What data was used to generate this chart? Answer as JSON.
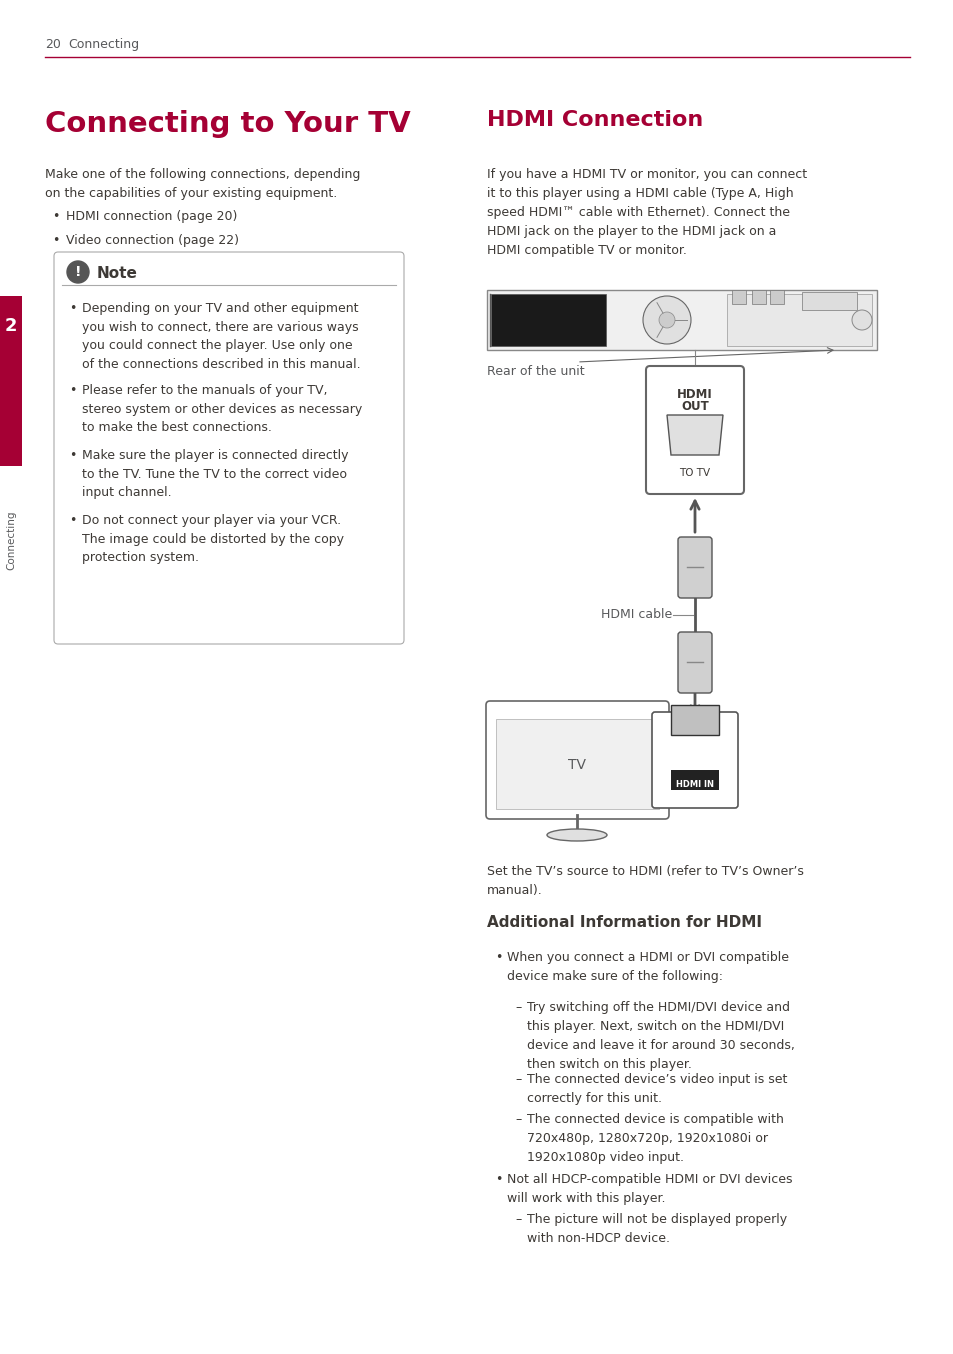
{
  "page_num": "20",
  "page_header_text": "Connecting",
  "header_line_color": "#a50034",
  "left_title": "Connecting to Your TV",
  "right_title": "HDMI Connection",
  "title_color": "#a50034",
  "left_intro": "Make one of the following connections, depending\non the capabilities of your existing equipment.",
  "left_bullets": [
    "HDMI connection (page 20)",
    "Video connection (page 22)"
  ],
  "note_title": "Note",
  "note_bullets": [
    "Depending on your TV and other equipment\nyou wish to connect, there are various ways\nyou could connect the player. Use only one\nof the connections described in this manual.",
    "Please refer to the manuals of your TV,\nstereo system or other devices as necessary\nto make the best connections.",
    "Make sure the player is connected directly\nto the TV. Tune the TV to the correct video\ninput channel.",
    "Do not connect your player via your VCR.\nThe image could be distorted by the copy\nprotection system."
  ],
  "right_intro": "If you have a HDMI TV or monitor, you can connect\nit to this player using a HDMI cable (Type A, High\nspeed HDMI™ cable with Ethernet). Connect the\nHDMI jack on the player to the HDMI jack on a\nHDMI compatible TV or monitor.",
  "caption_rear": "Rear of the unit",
  "caption_cable": "HDMI cable",
  "caption_tv": "TV",
  "set_source_text": "Set the TV’s source to HDMI (refer to TV’s Owner’s\nmanual).",
  "additional_title": "Additional Information for HDMI",
  "additional_bullet_1": "When you connect a HDMI or DVI compatible\ndevice make sure of the following:",
  "sub_bullets_1": [
    "Try switching off the HDMI/DVI device and\nthis player. Next, switch on the HDMI/DVI\ndevice and leave it for around 30 seconds,\nthen switch on this player.",
    "The connected device’s video input is set\ncorrectly for this unit.",
    "The connected device is compatible with\n720x480p, 1280x720p, 1920x1080i or\n1920x1080p video input."
  ],
  "additional_bullet_2": "Not all HDCP-compatible HDMI or DVI devices\nwill work with this player.",
  "sub_bullets_2": [
    "The picture will not be displayed properly\nwith non-HDCP device."
  ],
  "sidebar_number": "2",
  "sidebar_text": "Connecting",
  "sidebar_color": "#a50034",
  "bg_color": "#ffffff",
  "text_color": "#3d3935",
  "gray_text_color": "#58595b",
  "note_icon_color": "#555555"
}
